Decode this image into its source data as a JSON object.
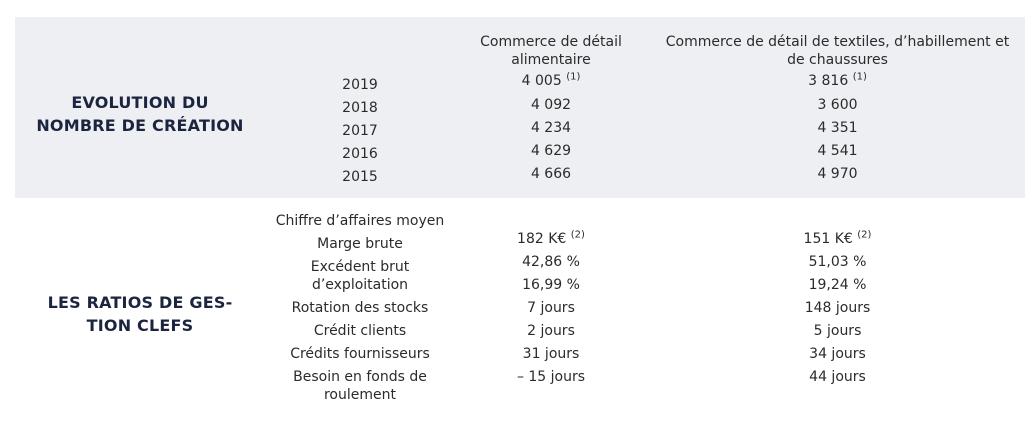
{
  "columns": {
    "food": "Commerce de détail alimentaire",
    "textile": "Commerce de détail de textiles, d’habillement et de chaussures"
  },
  "creation": {
    "title": "EVOLUTION DU NOMBRE DE CRÉATION",
    "title_lines": [
      "EVOLUTION DU",
      "NOMBRE DE CRÉATION"
    ],
    "rows": [
      {
        "year": "2019",
        "food": "4 005",
        "food_note": "(1)",
        "textile": "3 816",
        "textile_note": "(1)"
      },
      {
        "year": "2018",
        "food": "4 092",
        "textile": "3 600"
      },
      {
        "year": "2017",
        "food": "4 234",
        "textile": "4 351"
      },
      {
        "year": "2016",
        "food": "4 629",
        "textile": "4 541"
      },
      {
        "year": "2015",
        "food": "4 666",
        "textile": "4 970"
      }
    ]
  },
  "ratios": {
    "title_lines": [
      "LES RATIOS DE GES-",
      "TION CLEFS"
    ],
    "labels": [
      "Chiffre d’affaires moyen",
      "Marge brute",
      "Excédent brut",
      "d’exploitation",
      "Rotation des stocks",
      "Crédit clients",
      "Crédits fournisseurs",
      "Besoin en fonds de",
      "roulement"
    ],
    "food": [
      {
        "value": "182 K€",
        "note": "(2)"
      },
      {
        "value": "42,86 %"
      },
      {
        "value": "16,99 %"
      },
      {
        "value": "7 jours"
      },
      {
        "value": "2 jours"
      },
      {
        "value": "31 jours"
      },
      {
        "value": "– 15 jours"
      }
    ],
    "textile": [
      {
        "value": "151 K€",
        "note": "(2)"
      },
      {
        "value": "51,03 %"
      },
      {
        "value": "19,24 %"
      },
      {
        "value": "148 jours"
      },
      {
        "value": "5 jours"
      },
      {
        "value": "34 jours"
      },
      {
        "value": "44 jours"
      }
    ]
  }
}
